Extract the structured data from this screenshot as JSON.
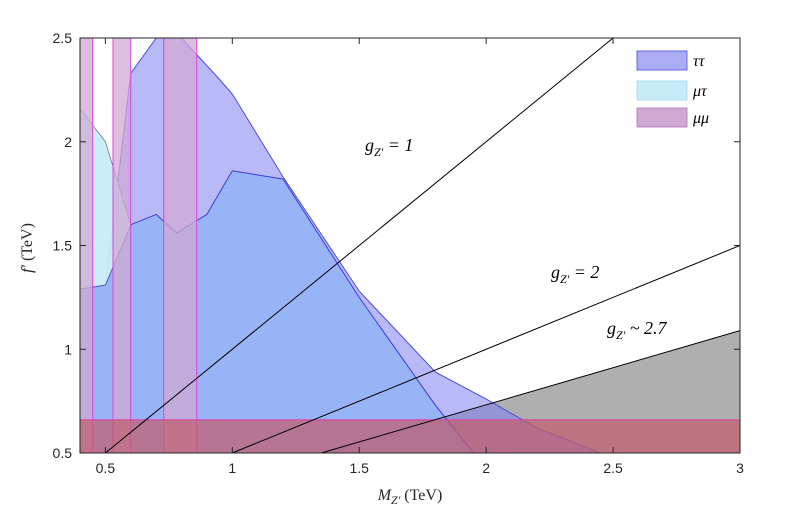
{
  "chart_data": {
    "type": "area",
    "xlabel": "M_{Z'} (TeV)",
    "ylabel": "f' (TeV)",
    "xlim": [
      0.4,
      3.0
    ],
    "ylim": [
      0.5,
      2.5
    ],
    "x_ticks": [
      0.5,
      1,
      1.5,
      2,
      2.5,
      3
    ],
    "x_tick_labels": [
      "0.5",
      "1",
      "1.5",
      "2",
      "2.5",
      "3"
    ],
    "y_ticks": [
      0.5,
      1,
      1.5,
      2,
      2.5
    ],
    "y_tick_labels": [
      "0.5",
      "1",
      "1.5",
      "2",
      "2.5"
    ],
    "grid": false,
    "legend_position": "top-right",
    "series": [
      {
        "name": "ττ",
        "color": "#8080f0",
        "upper": [
          [
            0.4,
            1.29
          ],
          [
            0.5,
            1.31
          ],
          [
            0.6,
            2.33
          ],
          [
            0.7,
            2.5
          ],
          [
            0.8,
            2.5
          ],
          [
            0.95,
            2.3
          ],
          [
            1.0,
            2.23
          ],
          [
            1.2,
            1.83
          ],
          [
            1.5,
            1.28
          ],
          [
            1.8,
            0.89
          ],
          [
            2.0,
            0.76
          ],
          [
            2.2,
            0.62
          ],
          [
            2.45,
            0.5
          ]
        ],
        "lower_boundary_curve": [
          [
            0.4,
            1.29
          ],
          [
            0.5,
            1.31
          ],
          [
            0.6,
            1.6
          ],
          [
            0.7,
            1.65
          ],
          [
            0.78,
            1.56
          ],
          [
            0.9,
            1.65
          ],
          [
            1.0,
            1.86
          ],
          [
            1.2,
            1.82
          ],
          [
            1.5,
            1.25
          ],
          [
            1.8,
            0.73
          ],
          [
            1.95,
            0.5
          ]
        ]
      },
      {
        "name": "μτ",
        "color": "#c7ecf8",
        "upper": [
          [
            0.4,
            2.16
          ],
          [
            0.5,
            2.0
          ],
          [
            0.6,
            1.6
          ]
        ]
      },
      {
        "name": "μμ",
        "color": "#d0a9d3",
        "vertical_bands": [
          [
            0.4,
            0.45
          ],
          [
            0.53,
            0.6
          ],
          [
            0.73,
            0.86
          ]
        ],
        "horizontal_band": [
          0.5,
          0.66
        ]
      }
    ],
    "lines": [
      {
        "label": "g_{Z'} = 1",
        "points": [
          [
            0.5,
            0.5
          ],
          [
            2.5,
            2.5
          ]
        ]
      },
      {
        "label": "g_{Z'} = 2",
        "points": [
          [
            1.0,
            0.5
          ],
          [
            3.0,
            1.5
          ]
        ]
      },
      {
        "label": "g_{Z'} ~ 2.7",
        "points": [
          [
            1.35,
            0.5
          ],
          [
            3.0,
            1.09
          ]
        ],
        "shaded": true,
        "shade_color": "#a6a6a6"
      }
    ],
    "annotations": [
      {
        "text": "g_{Z'} = 1",
        "at": [
          1.55,
          2.0
        ]
      },
      {
        "text": "g_{Z'} = 2",
        "at": [
          1.75,
          1.35
        ]
      },
      {
        "text": "g_{Z'} ~ 2.7",
        "at": [
          2.5,
          1.08
        ]
      }
    ]
  },
  "text": {
    "xlabel_main": "M",
    "xlabel_sub": "Z'",
    "xlabel_unit": " (TeV)",
    "ylabel_main": "f'",
    "ylabel_unit": " (TeV)",
    "legend_tautau": "ττ",
    "legend_mutau": "μτ",
    "legend_mumu": "μμ",
    "annot_g1_main": "g",
    "annot_g1_sub": "Z'",
    "annot_g1_val": " = 1",
    "annot_g2_main": "g",
    "annot_g2_sub": "Z'",
    "annot_g2_val": " = 2",
    "annot_g27_main": "g",
    "annot_g27_sub": "Z'",
    "annot_g27_val": " ~ 2.7"
  }
}
